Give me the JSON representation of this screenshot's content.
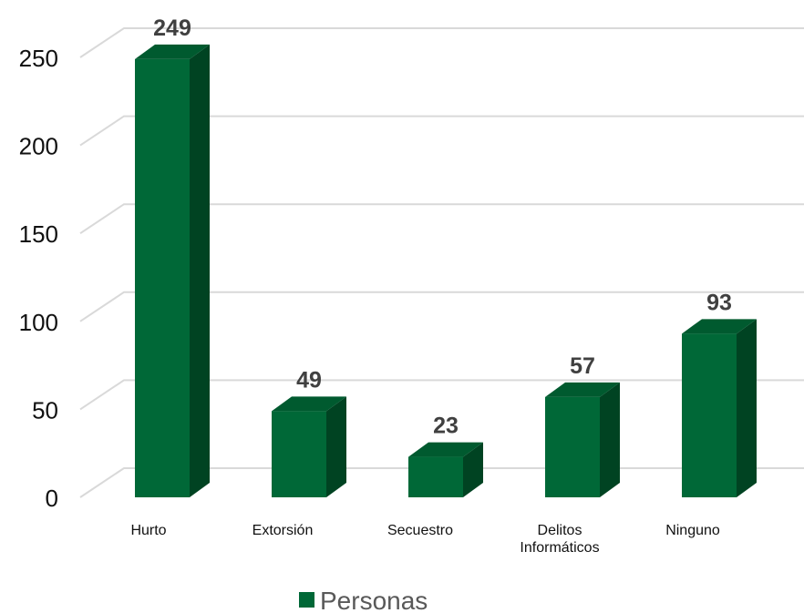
{
  "chart_data": {
    "type": "bar",
    "style": "3d-column",
    "categories": [
      "Hurto",
      "Extorsión",
      "Secuestro",
      "Delitos Informáticos",
      "Ninguno"
    ],
    "series": [
      {
        "name": "Personas",
        "values": [
          249,
          49,
          23,
          57,
          93
        ]
      }
    ],
    "data_labels": [
      "249",
      "49",
      "23",
      "57",
      "93"
    ],
    "y_ticks": [
      "0",
      "50",
      "100",
      "150",
      "200",
      "250"
    ],
    "ylim": [
      0,
      250
    ],
    "grid": true,
    "legend": "bottom",
    "colors": {
      "front": "#006837",
      "side": "#004322",
      "top": "#005a2f",
      "grid": "#d9d9d9"
    }
  }
}
